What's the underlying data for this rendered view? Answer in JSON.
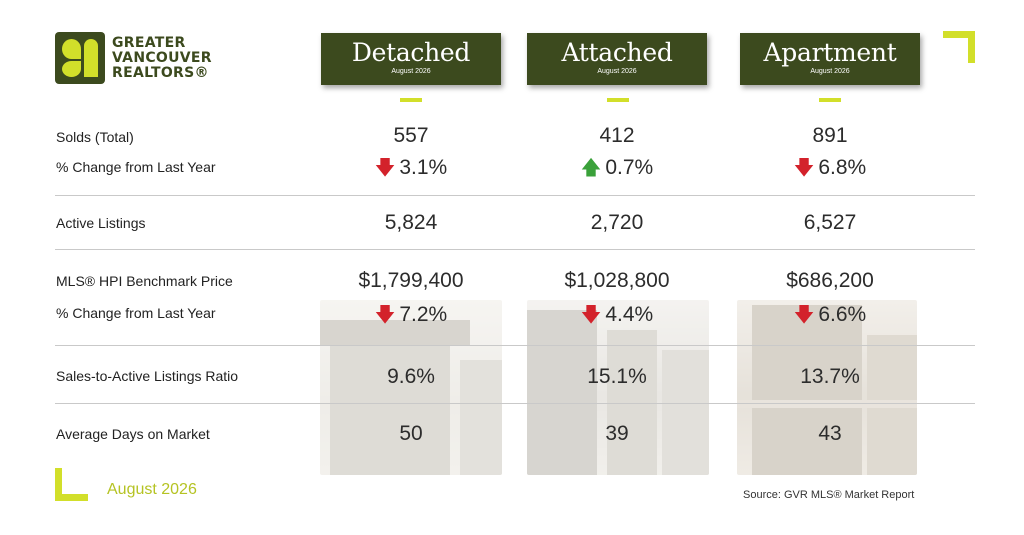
{
  "logo": {
    "line1": "GREATER",
    "line2": "VANCOUVER",
    "line3": "REALTORS®"
  },
  "columns": [
    {
      "title": "Detached",
      "subtitle": "August 2026"
    },
    {
      "title": "Attached",
      "subtitle": "August 2026"
    },
    {
      "title": "Apartment",
      "subtitle": "August 2026"
    }
  ],
  "rows": {
    "solds": {
      "label": "Solds (Total)",
      "values": [
        "557",
        "412",
        "891"
      ]
    },
    "solds_change": {
      "label": "% Change from Last Year",
      "values": [
        "3.1%",
        "0.7%",
        "6.8%"
      ],
      "directions": [
        "down",
        "up",
        "down"
      ]
    },
    "active": {
      "label": "Active Listings",
      "values": [
        "5,824",
        "2,720",
        "6,527"
      ]
    },
    "hpi": {
      "label": "MLS® HPI Benchmark Price",
      "values": [
        "$1,799,400",
        "$1,028,800",
        "$686,200"
      ]
    },
    "hpi_change": {
      "label": "% Change from Last Year",
      "values": [
        "7.2%",
        "4.4%",
        "6.6%"
      ],
      "directions": [
        "down",
        "down",
        "down"
      ]
    },
    "ratio": {
      "label": "Sales-to-Active Listings Ratio",
      "values": [
        "9.6%",
        "15.1%",
        "13.7%"
      ]
    },
    "dom": {
      "label": "Average Days on Market",
      "values": [
        "50",
        "39",
        "43"
      ]
    }
  },
  "icons": {
    "down": "arrow-down-icon",
    "up": "arrow-up-icon"
  },
  "colors": {
    "brand_dark": "#3c4a1e",
    "brand_accent": "#d2df2a",
    "down": "#d3222b",
    "up": "#3aa13a"
  },
  "footer": {
    "date": "August 2026",
    "source": "Source: GVR MLS® Market Report"
  }
}
